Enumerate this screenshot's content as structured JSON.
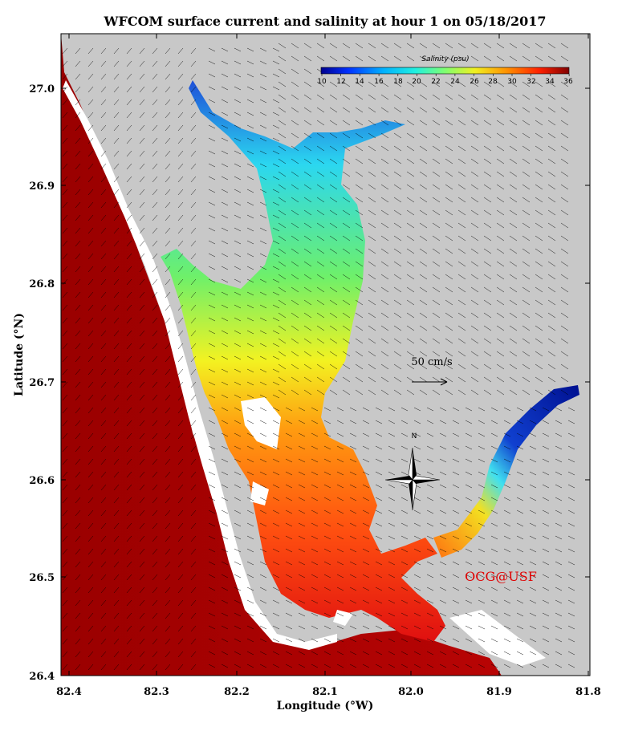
{
  "title": "WFCOM surface current and salinity at hour 1 on 05/18/2017",
  "xlabel": "Longitude (°W)",
  "ylabel": "Latitude (°N)",
  "x_ticks": [
    "82.4",
    "82.3",
    "82.2",
    "82.1",
    "82.0",
    "81.9",
    "81.8"
  ],
  "y_ticks": [
    "27.0",
    "26.9",
    "26.8",
    "26.7",
    "26.6",
    "26.5",
    "26.4"
  ],
  "colorbar": {
    "label": "Salinity (psu)",
    "ticks": [
      "10",
      "12",
      "14",
      "16",
      "18",
      "20",
      "22",
      "24",
      "26",
      "28",
      "30",
      "32",
      "34",
      "36"
    ]
  },
  "scale_label": "50 cm/s",
  "north_label": "N",
  "credit": "OCG@USF",
  "colors": {
    "land": "#c8c8c8",
    "gulf_water": "#b20000",
    "frame": "#000000",
    "credit": "#e00000"
  }
}
